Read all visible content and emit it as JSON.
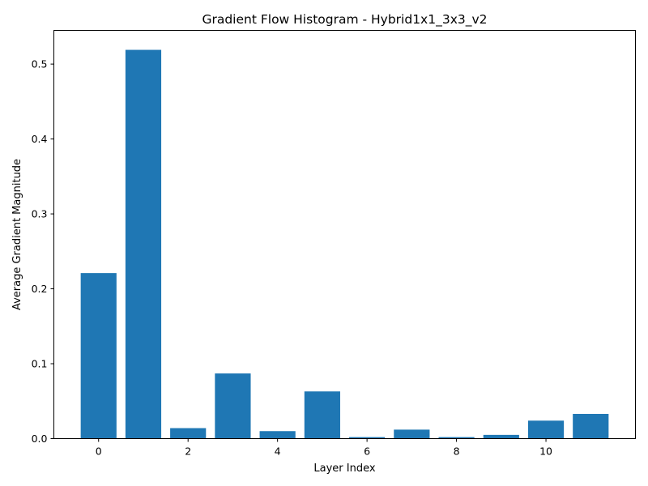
{
  "chart_data": {
    "type": "bar",
    "title": "Gradient Flow Histogram - Hybrid1x1_3x3_v2",
    "xlabel": "Layer Index",
    "ylabel": "Average Gradient Magnitude",
    "x": [
      0,
      1,
      2,
      3,
      4,
      5,
      6,
      7,
      8,
      9,
      10,
      11
    ],
    "values": [
      0.221,
      0.519,
      0.014,
      0.087,
      0.01,
      0.063,
      0.002,
      0.012,
      0.002,
      0.005,
      0.024,
      0.033
    ],
    "xlim": [
      -1,
      12
    ],
    "ylim": [
      0,
      0.545
    ],
    "xticks": [
      0,
      2,
      4,
      6,
      8,
      10
    ],
    "yticks": [
      0.0,
      0.1,
      0.2,
      0.3,
      0.4,
      0.5
    ],
    "ytick_labels": [
      "0.0",
      "0.1",
      "0.2",
      "0.3",
      "0.4",
      "0.5"
    ],
    "bar_color": "#1f77b4",
    "grid": false,
    "legend": "none"
  }
}
